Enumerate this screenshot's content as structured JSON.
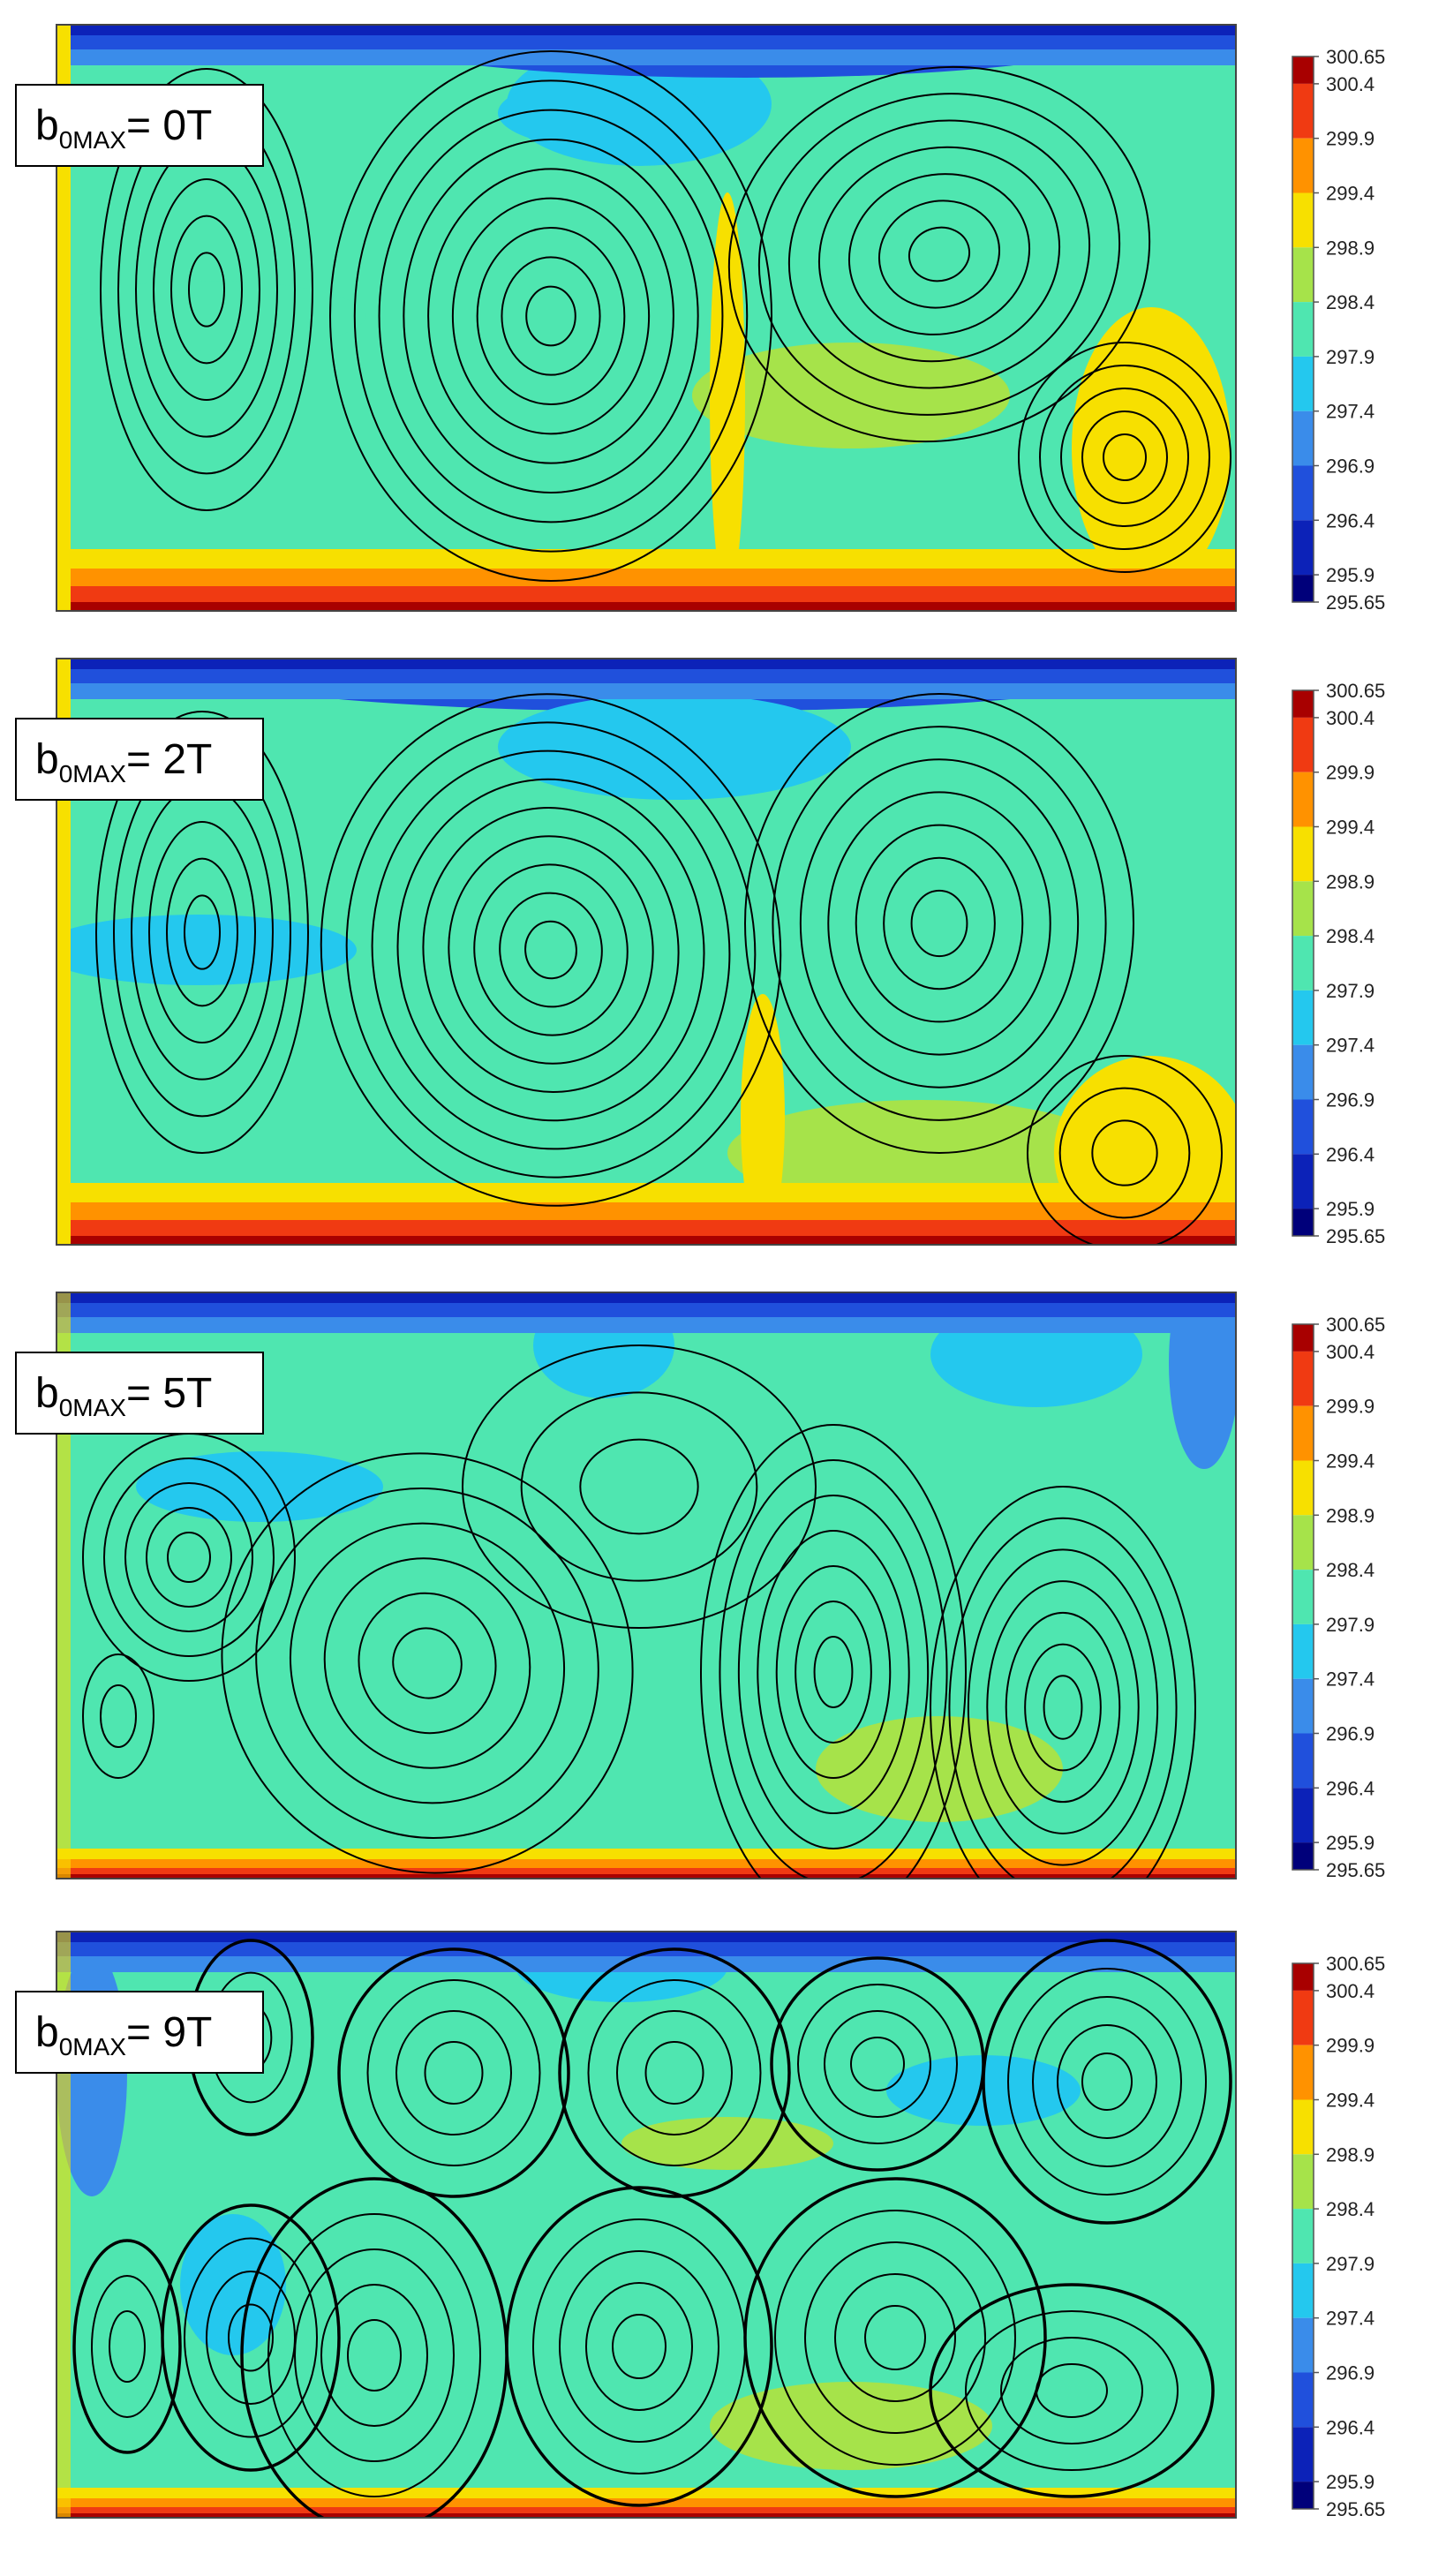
{
  "panels": [
    {
      "label": {
        "base": "b",
        "subscript": "0MAX",
        "rest": "= 0T"
      }
    },
    {
      "label": {
        "base": "b",
        "subscript": "0MAX",
        "rest": "= 2T"
      }
    },
    {
      "label": {
        "base": "b",
        "subscript": "0MAX",
        "rest": "= 5T"
      }
    },
    {
      "label": {
        "base": "b",
        "subscript": "0MAX",
        "rest": "= 9T"
      }
    }
  ],
  "colorbar": {
    "ticks": [
      300.65,
      300.4,
      299.9,
      299.4,
      298.9,
      298.4,
      297.9,
      297.4,
      296.9,
      296.4,
      295.9,
      295.65
    ],
    "colors": [
      "#a80000",
      "#f03a12",
      "#ff9200",
      "#f7e000",
      "#a6e34a",
      "#4fe6b0",
      "#24c8ee",
      "#3a8cea",
      "#2050dc",
      "#0c22b8",
      "#00007a"
    ]
  }
}
